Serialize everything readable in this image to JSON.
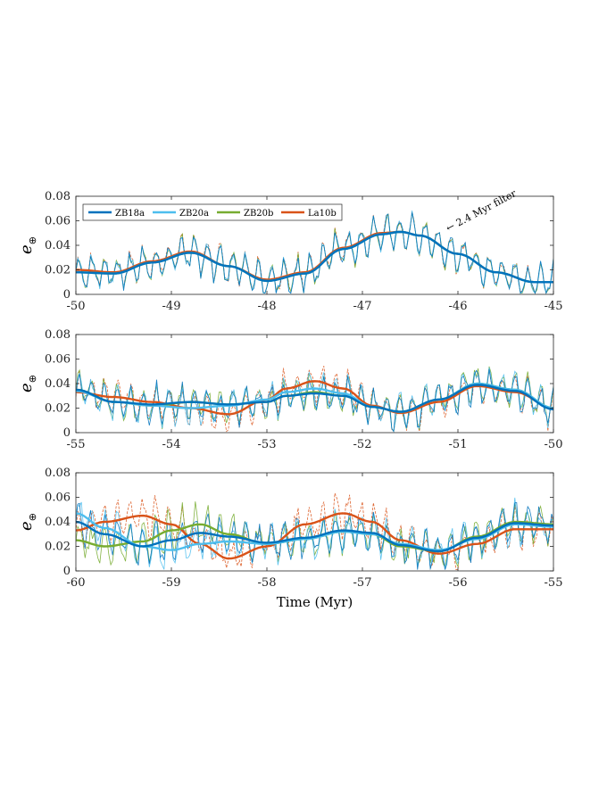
{
  "chart_data": [
    {
      "type": "line",
      "title": "",
      "xlabel": "",
      "ylabel": "e",
      "ylabel_subscript": "⊕",
      "xlim": [
        -50,
        -45
      ],
      "ylim": [
        0,
        0.08
      ],
      "xticks": [
        -50,
        -49,
        -48,
        -47,
        -46,
        -45
      ],
      "yticks": [
        "0",
        "0.02",
        "0.04",
        "0.06",
        "0.08"
      ],
      "legend": {
        "placement": "top-left",
        "entries": [
          "ZB18a",
          "ZB20a",
          "ZB20b",
          "La10b"
        ]
      },
      "annotation": "← 2.4 Myr filter",
      "filtered_series": [
        {
          "name": "La10b",
          "color": "#D95319",
          "x": [
            -50,
            -49.6,
            -49.2,
            -48.8,
            -48.4,
            -48.0,
            -47.6,
            -47.2,
            -46.8,
            -46.6,
            -46.4,
            -46.0,
            -45.6,
            -45.2,
            -45.0
          ],
          "y": [
            0.02,
            0.018,
            0.027,
            0.035,
            0.023,
            0.012,
            0.018,
            0.038,
            0.05,
            0.051,
            0.048,
            0.033,
            0.018,
            0.01,
            0.01
          ]
        },
        {
          "name": "ZB20b",
          "color": "#77AC30",
          "x": [
            -50,
            -49.6,
            -49.2,
            -48.8,
            -48.4,
            -48.0,
            -47.6,
            -47.2,
            -46.8,
            -46.6,
            -46.4,
            -46.0,
            -45.6,
            -45.2,
            -45.0
          ],
          "y": [
            0.018,
            0.017,
            0.026,
            0.034,
            0.023,
            0.011,
            0.017,
            0.037,
            0.049,
            0.051,
            0.048,
            0.033,
            0.018,
            0.01,
            0.01
          ]
        },
        {
          "name": "ZB20a",
          "color": "#4DBEEE",
          "x": [
            -50,
            -49.6,
            -49.2,
            -48.8,
            -48.4,
            -48.0,
            -47.6,
            -47.2,
            -46.8,
            -46.6,
            -46.4,
            -46.0,
            -45.6,
            -45.2,
            -45.0
          ],
          "y": [
            0.018,
            0.017,
            0.026,
            0.034,
            0.023,
            0.011,
            0.017,
            0.037,
            0.049,
            0.051,
            0.048,
            0.033,
            0.018,
            0.01,
            0.01
          ]
        },
        {
          "name": "ZB18a",
          "color": "#0072BD",
          "x": [
            -50,
            -49.6,
            -49.2,
            -48.8,
            -48.4,
            -48.0,
            -47.6,
            -47.2,
            -46.8,
            -46.6,
            -46.4,
            -46.0,
            -45.6,
            -45.2,
            -45.0
          ],
          "y": [
            0.018,
            0.017,
            0.026,
            0.034,
            0.023,
            0.011,
            0.017,
            0.037,
            0.049,
            0.051,
            0.048,
            0.033,
            0.018,
            0.01,
            0.01
          ]
        }
      ]
    },
    {
      "type": "line",
      "title": "",
      "xlabel": "",
      "ylabel": "e",
      "ylabel_subscript": "⊕",
      "xlim": [
        -55,
        -50
      ],
      "ylim": [
        0,
        0.08
      ],
      "xticks": [
        -55,
        -54,
        -53,
        -52,
        -51,
        -50
      ],
      "yticks": [
        "0",
        "0.02",
        "0.04",
        "0.06",
        "0.08"
      ],
      "filtered_series": [
        {
          "name": "La10b",
          "color": "#D95319",
          "x": [
            -55,
            -54.6,
            -54.2,
            -53.8,
            -53.4,
            -53.0,
            -52.8,
            -52.5,
            -52.2,
            -51.9,
            -51.6,
            -51.2,
            -50.8,
            -50.4,
            -50.0
          ],
          "y": [
            0.033,
            0.029,
            0.025,
            0.02,
            0.015,
            0.027,
            0.036,
            0.042,
            0.036,
            0.022,
            0.016,
            0.025,
            0.038,
            0.033,
            0.02
          ]
        },
        {
          "name": "ZB20b",
          "color": "#77AC30",
          "x": [
            -55,
            -54.6,
            -54.2,
            -53.8,
            -53.4,
            -53.0,
            -52.8,
            -52.5,
            -52.2,
            -51.9,
            -51.6,
            -51.2,
            -50.8,
            -50.4,
            -50.0
          ],
          "y": [
            0.035,
            0.025,
            0.022,
            0.025,
            0.023,
            0.025,
            0.03,
            0.033,
            0.03,
            0.021,
            0.017,
            0.027,
            0.04,
            0.035,
            0.02
          ]
        },
        {
          "name": "ZB20a",
          "color": "#4DBEEE",
          "x": [
            -55,
            -54.6,
            -54.2,
            -53.8,
            -53.4,
            -53.0,
            -52.8,
            -52.5,
            -52.2,
            -51.9,
            -51.6,
            -51.2,
            -50.8,
            -50.4,
            -50.0
          ],
          "y": [
            0.034,
            0.025,
            0.022,
            0.02,
            0.022,
            0.027,
            0.033,
            0.036,
            0.032,
            0.021,
            0.017,
            0.027,
            0.04,
            0.035,
            0.02
          ]
        },
        {
          "name": "ZB18a",
          "color": "#0072BD",
          "x": [
            -55,
            -54.6,
            -54.2,
            -53.8,
            -53.4,
            -53.0,
            -52.8,
            -52.5,
            -52.2,
            -51.9,
            -51.6,
            -51.2,
            -50.8,
            -50.4,
            -50.0
          ],
          "y": [
            0.035,
            0.025,
            0.023,
            0.025,
            0.023,
            0.025,
            0.03,
            0.032,
            0.03,
            0.021,
            0.017,
            0.027,
            0.039,
            0.034,
            0.019
          ]
        }
      ]
    },
    {
      "type": "line",
      "title": "",
      "xlabel": "Time (Myr)",
      "ylabel": "e",
      "ylabel_subscript": "⊕",
      "xlim": [
        -60,
        -55
      ],
      "ylim": [
        0,
        0.08
      ],
      "xticks": [
        -60,
        -59,
        -58,
        -57,
        -56,
        -55
      ],
      "yticks": [
        "0",
        "0.02",
        "0.04",
        "0.06",
        "0.08"
      ],
      "filtered_series": [
        {
          "name": "La10b",
          "color": "#D95319",
          "x": [
            -60,
            -59.7,
            -59.3,
            -59.0,
            -58.7,
            -58.4,
            -58.0,
            -57.6,
            -57.2,
            -56.9,
            -56.6,
            -56.2,
            -55.8,
            -55.4,
            -55.0
          ],
          "y": [
            0.033,
            0.04,
            0.045,
            0.038,
            0.022,
            0.01,
            0.02,
            0.038,
            0.047,
            0.04,
            0.025,
            0.014,
            0.022,
            0.034,
            0.034
          ]
        },
        {
          "name": "ZB20b",
          "color": "#77AC30",
          "x": [
            -60,
            -59.7,
            -59.3,
            -59.0,
            -58.7,
            -58.4,
            -58.0,
            -57.6,
            -57.2,
            -56.9,
            -56.6,
            -56.2,
            -55.8,
            -55.4,
            -55.0
          ],
          "y": [
            0.025,
            0.02,
            0.024,
            0.033,
            0.038,
            0.03,
            0.022,
            0.026,
            0.032,
            0.03,
            0.02,
            0.016,
            0.028,
            0.04,
            0.038
          ]
        },
        {
          "name": "ZB20a",
          "color": "#4DBEEE",
          "x": [
            -60,
            -59.7,
            -59.3,
            -59.0,
            -58.7,
            -58.4,
            -58.0,
            -57.6,
            -57.2,
            -56.9,
            -56.6,
            -56.2,
            -55.8,
            -55.4,
            -55.0
          ],
          "y": [
            0.047,
            0.035,
            0.02,
            0.017,
            0.022,
            0.024,
            0.022,
            0.026,
            0.032,
            0.03,
            0.022,
            0.017,
            0.026,
            0.038,
            0.036
          ]
        },
        {
          "name": "ZB18a",
          "color": "#0072BD",
          "x": [
            -60,
            -59.7,
            -59.3,
            -59.0,
            -58.7,
            -58.4,
            -58.0,
            -57.6,
            -57.2,
            -56.9,
            -56.6,
            -56.2,
            -55.8,
            -55.4,
            -55.0
          ],
          "y": [
            0.04,
            0.03,
            0.02,
            0.025,
            0.031,
            0.028,
            0.023,
            0.027,
            0.033,
            0.031,
            0.021,
            0.016,
            0.027,
            0.039,
            0.037
          ]
        }
      ]
    }
  ]
}
